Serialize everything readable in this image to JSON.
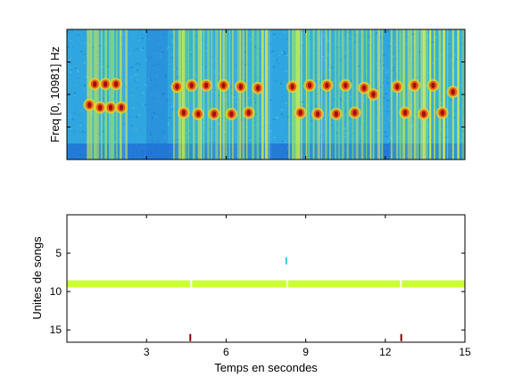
{
  "chart_data": [
    {
      "type": "heatmap",
      "title": "",
      "xlabel": "",
      "ylabel": "Freq [0, 10981] Hz",
      "xlim": [
        0,
        15
      ],
      "ylim": [
        0,
        10981
      ],
      "colormap": "jet",
      "background_color": "#30a6e0",
      "song_segments": [
        {
          "start": 0.75,
          "end": 2.2
        },
        {
          "start": 4.0,
          "end": 7.7
        },
        {
          "start": 8.35,
          "end": 11.9
        },
        {
          "start": 12.2,
          "end": 15.0
        }
      ],
      "bird_calls": [
        {
          "t": 0.85,
          "f": 0.42
        },
        {
          "t": 1.05,
          "f": 0.58
        },
        {
          "t": 1.25,
          "f": 0.4
        },
        {
          "t": 1.45,
          "f": 0.58
        },
        {
          "t": 1.65,
          "f": 0.4
        },
        {
          "t": 1.85,
          "f": 0.58
        },
        {
          "t": 2.05,
          "f": 0.4
        },
        {
          "t": 4.15,
          "f": 0.56
        },
        {
          "t": 4.4,
          "f": 0.36
        },
        {
          "t": 4.7,
          "f": 0.57
        },
        {
          "t": 4.95,
          "f": 0.35
        },
        {
          "t": 5.25,
          "f": 0.57
        },
        {
          "t": 5.55,
          "f": 0.35
        },
        {
          "t": 5.9,
          "f": 0.57
        },
        {
          "t": 6.2,
          "f": 0.35
        },
        {
          "t": 6.55,
          "f": 0.56
        },
        {
          "t": 6.85,
          "f": 0.36
        },
        {
          "t": 7.2,
          "f": 0.55
        },
        {
          "t": 8.5,
          "f": 0.56
        },
        {
          "t": 8.8,
          "f": 0.36
        },
        {
          "t": 9.15,
          "f": 0.57
        },
        {
          "t": 9.45,
          "f": 0.35
        },
        {
          "t": 9.8,
          "f": 0.57
        },
        {
          "t": 10.15,
          "f": 0.35
        },
        {
          "t": 10.5,
          "f": 0.57
        },
        {
          "t": 10.85,
          "f": 0.36
        },
        {
          "t": 11.2,
          "f": 0.55
        },
        {
          "t": 11.55,
          "f": 0.5
        },
        {
          "t": 12.45,
          "f": 0.56
        },
        {
          "t": 12.75,
          "f": 0.36
        },
        {
          "t": 13.1,
          "f": 0.57
        },
        {
          "t": 13.45,
          "f": 0.35
        },
        {
          "t": 13.8,
          "f": 0.57
        },
        {
          "t": 14.15,
          "f": 0.36
        },
        {
          "t": 14.55,
          "f": 0.52
        }
      ]
    },
    {
      "type": "scatter",
      "title": "",
      "xlabel": "Temps en secondes",
      "ylabel": "Unites de songs",
      "xlim": [
        0,
        15
      ],
      "ylim": [
        0,
        16.6
      ],
      "y_reversed": true,
      "xticks": [
        3,
        6,
        9,
        12,
        15
      ],
      "xtick_labels": [
        "3",
        "6",
        "9",
        "12",
        "15"
      ],
      "yticks": [
        5,
        10,
        15
      ],
      "ytick_labels": [
        "5",
        "10",
        "15"
      ],
      "segments": [
        {
          "unit": 9,
          "start": 0.0,
          "end": 4.65,
          "color": "#ccff33"
        },
        {
          "unit": 9,
          "start": 4.72,
          "end": 8.27,
          "color": "#ccff33"
        },
        {
          "unit": 9,
          "start": 8.34,
          "end": 12.55,
          "color": "#ccff33"
        },
        {
          "unit": 9,
          "start": 12.62,
          "end": 15.0,
          "color": "#ccff33"
        }
      ],
      "marks": [
        {
          "unit": 6,
          "t": 8.27,
          "color": "#33ccdd"
        },
        {
          "unit": 16,
          "t": 4.65,
          "color": "#880000"
        },
        {
          "unit": 16,
          "t": 12.6,
          "color": "#880000"
        }
      ]
    }
  ]
}
